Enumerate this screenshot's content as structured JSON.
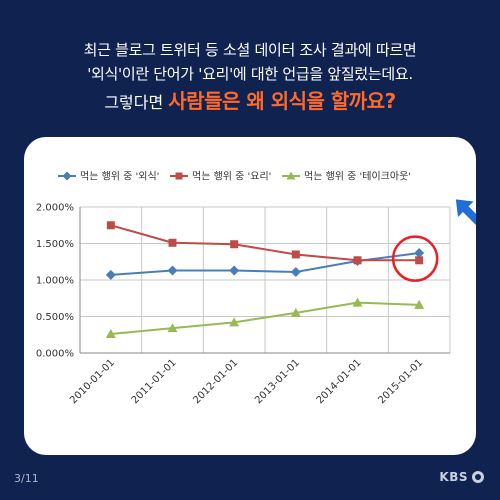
{
  "headline": {
    "line1": "최근 블로그 트위터 등 소셜 데이터 조사 결과에 따르면",
    "line2": "'외식'이란 단어가 '요리'에 대한 언급을 앞질렀는데요.",
    "line3_prefix": "그렇다면 ",
    "line3_highlight": "사람들은 왜 외식을 할까요?"
  },
  "page": "3/11",
  "logo": "KBS",
  "colors": {
    "background": "#0f2250",
    "highlight": "#ff6a2b",
    "circle": "#e8202a",
    "arrow": "#1f6fd6"
  },
  "chart_data": {
    "type": "line",
    "x": [
      "2010-01-01",
      "2011-01-01",
      "2012-01-01",
      "2013-01-01",
      "2014-01-01",
      "2015-01-01"
    ],
    "series": [
      {
        "name": "먹는 행위 중 '외식'",
        "color": "#4a7ebb",
        "marker": "diamond",
        "values": [
          1.07,
          1.13,
          1.13,
          1.11,
          1.26,
          1.37
        ]
      },
      {
        "name": "먹는 행위 중 '요리'",
        "color": "#be4b48",
        "marker": "square",
        "values": [
          1.75,
          1.51,
          1.49,
          1.35,
          1.27,
          1.27
        ]
      },
      {
        "name": "먹는 행위 중 '테이크아웃'",
        "color": "#98b954",
        "marker": "triangle",
        "values": [
          0.26,
          0.34,
          0.42,
          0.55,
          0.69,
          0.66
        ]
      }
    ],
    "yticks": [
      "0.000%",
      "0.500%",
      "1.000%",
      "1.500%",
      "2.000%"
    ],
    "ylim": [
      0,
      2
    ],
    "grid": true,
    "legend_position": "top",
    "annotation": "circle-and-arrow at 2015-01-01"
  }
}
